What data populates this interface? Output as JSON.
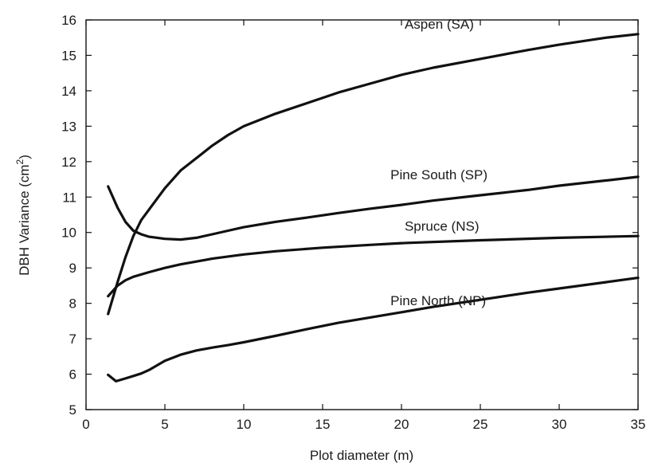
{
  "chart_data": {
    "type": "line",
    "xlabel": "Plot diameter (m)",
    "ylabel": "DBH Variance (cm",
    "ylabel_sup": "2",
    "ylabel_close": ")",
    "xlim": [
      0,
      35
    ],
    "ylim": [
      5,
      16
    ],
    "xticks": [
      0,
      5,
      10,
      15,
      20,
      25,
      30,
      35
    ],
    "yticks": [
      5,
      6,
      7,
      8,
      9,
      10,
      11,
      12,
      13,
      14,
      15,
      16
    ],
    "grid": false,
    "line_color": "#111111",
    "series": [
      {
        "name": "Aspen (SA)",
        "x": [
          1.4,
          2,
          2.5,
          3,
          3.5,
          4,
          5,
          6,
          7,
          8,
          9,
          10,
          12,
          14,
          16,
          18,
          20,
          22,
          25,
          28,
          30,
          33,
          35
        ],
        "y": [
          7.7,
          8.6,
          9.3,
          9.9,
          10.35,
          10.65,
          11.25,
          11.75,
          12.1,
          12.45,
          12.75,
          13.0,
          13.35,
          13.65,
          13.95,
          14.2,
          14.45,
          14.65,
          14.9,
          15.15,
          15.3,
          15.5,
          15.6
        ]
      },
      {
        "name": "Pine South (SP)",
        "x": [
          1.4,
          2,
          2.5,
          3,
          3.5,
          4,
          5,
          6,
          7,
          8,
          9,
          10,
          12,
          14,
          16,
          18,
          20,
          22,
          25,
          28,
          30,
          33,
          35
        ],
        "y": [
          11.3,
          10.7,
          10.3,
          10.05,
          9.95,
          9.88,
          9.82,
          9.8,
          9.85,
          9.95,
          10.05,
          10.15,
          10.3,
          10.42,
          10.55,
          10.67,
          10.78,
          10.9,
          11.05,
          11.2,
          11.32,
          11.47,
          11.57
        ]
      },
      {
        "name": "Spruce (NS)",
        "x": [
          1.4,
          2,
          2.5,
          3,
          4,
          5,
          6,
          7,
          8,
          10,
          12,
          15,
          18,
          20,
          25,
          30,
          35
        ],
        "y": [
          8.2,
          8.5,
          8.65,
          8.75,
          8.88,
          9.0,
          9.1,
          9.18,
          9.26,
          9.38,
          9.47,
          9.57,
          9.65,
          9.7,
          9.78,
          9.85,
          9.9
        ]
      },
      {
        "name": "Pine North (NP)",
        "x": [
          1.4,
          1.9,
          2.5,
          3,
          3.5,
          4,
          5,
          6,
          7,
          8,
          9,
          10,
          12,
          14,
          16,
          18,
          20,
          22,
          25,
          28,
          30,
          33,
          35
        ],
        "y": [
          5.98,
          5.8,
          5.88,
          5.95,
          6.02,
          6.12,
          6.38,
          6.55,
          6.67,
          6.75,
          6.82,
          6.9,
          7.08,
          7.27,
          7.45,
          7.6,
          7.75,
          7.9,
          8.1,
          8.3,
          8.42,
          8.6,
          8.72
        ]
      }
    ],
    "annotations": [
      {
        "series": "Aspen (SA)",
        "text": "Aspen (SA)",
        "x": 20.2,
        "y": 15.75
      },
      {
        "series": "Pine South (SP)",
        "text": "Pine South (SP)",
        "x": 19.3,
        "y": 11.5
      },
      {
        "series": "Spruce (NS)",
        "text": "Spruce (NS)",
        "x": 20.2,
        "y": 10.05
      },
      {
        "series": "Pine North (NP)",
        "text": "Pine North (NP)",
        "x": 19.3,
        "y": 7.95
      }
    ]
  }
}
